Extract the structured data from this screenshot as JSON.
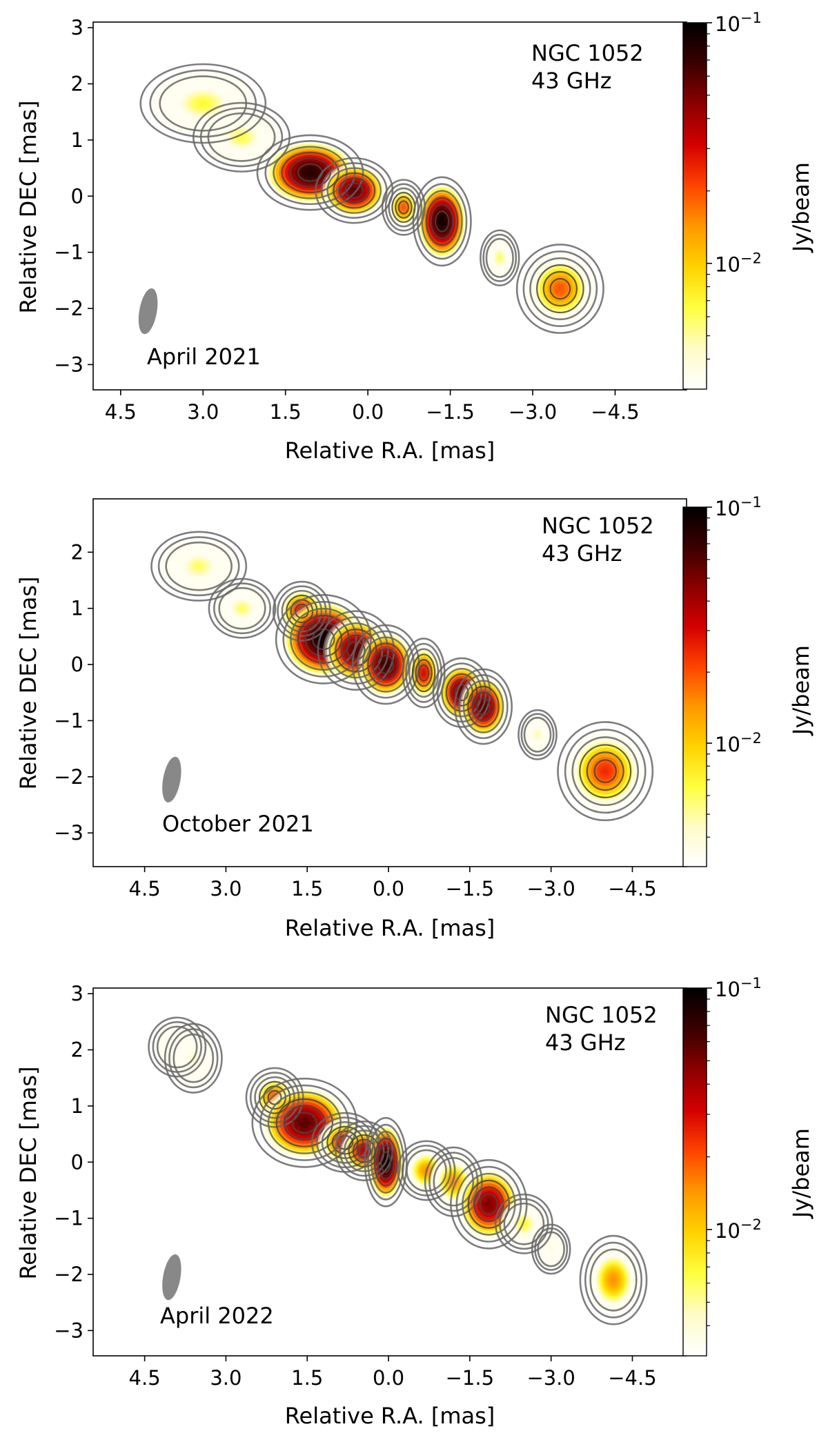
{
  "colors": {
    "colormap": [
      "#ffffff",
      "#fffbc8",
      "#ffff40",
      "#ffd300",
      "#ff9900",
      "#ff4400",
      "#d40000",
      "#8b0000",
      "#3a0000",
      "#000000"
    ],
    "contour": "#666666",
    "beam": "#888888",
    "frame": "#000000"
  },
  "chart_data": [
    {
      "type": "heatmap",
      "source_label": "NGC 1052",
      "frequency_label": "43 GHz",
      "epoch": "April 2021",
      "xlabel": "Relative R.A. [mas]",
      "ylabel": "Relative DEC [mas]",
      "colorbar_label": "Jy/beam",
      "colorbar_scale": "log",
      "colorbar_range": [
        0.003,
        0.1
      ],
      "colorbar_ticks": [
        {
          "value": 0.1,
          "label": "10",
          "exp": "−1"
        },
        {
          "value": 0.01,
          "label": "10",
          "exp": "−2"
        }
      ],
      "xlim": [
        5.0,
        -5.8
      ],
      "ylim": [
        -3.45,
        3.1
      ],
      "xticks": [
        4.5,
        3.0,
        1.5,
        0.0,
        -1.5,
        -3.0,
        -4.5
      ],
      "xtick_labels": [
        "4.5",
        "3.0",
        "1.5",
        "0.0",
        "−1.5",
        "−3.0",
        "−4.5"
      ],
      "yticks": [
        3,
        2,
        1,
        0,
        -1,
        -2,
        -3
      ],
      "ytick_labels": [
        "3",
        "2",
        "1",
        "0",
        "−1",
        "−2",
        "−3"
      ],
      "beam": {
        "ra": 4.0,
        "dec": -2.05,
        "major_mas": 0.75,
        "minor_mas": 0.32,
        "pa_deg": 10
      },
      "components": [
        {
          "ra": 3.0,
          "dec": 1.65,
          "peak_jy": 0.007,
          "ra_size": 0.65,
          "dec_size": 0.4
        },
        {
          "ra": 2.3,
          "dec": 1.05,
          "peak_jy": 0.0065,
          "ra_size": 0.5,
          "dec_size": 0.35
        },
        {
          "ra": 1.05,
          "dec": 0.42,
          "peak_jy": 0.08,
          "ra_size": 0.55,
          "dec_size": 0.38
        },
        {
          "ra": 0.25,
          "dec": 0.1,
          "peak_jy": 0.06,
          "ra_size": 0.4,
          "dec_size": 0.33
        },
        {
          "ra": -0.65,
          "dec": -0.2,
          "peak_jy": 0.02,
          "ra_size": 0.22,
          "dec_size": 0.28
        },
        {
          "ra": -1.35,
          "dec": -0.45,
          "peak_jy": 0.09,
          "ra_size": 0.3,
          "dec_size": 0.45
        },
        {
          "ra": -2.4,
          "dec": -1.1,
          "peak_jy": 0.006,
          "ra_size": 0.2,
          "dec_size": 0.28
        },
        {
          "ra": -3.5,
          "dec": -1.65,
          "peak_jy": 0.02,
          "ra_size": 0.45,
          "dec_size": 0.45
        }
      ]
    },
    {
      "type": "heatmap",
      "source_label": "NGC 1052",
      "frequency_label": "43 GHz",
      "epoch": "October 2021",
      "xlabel": "Relative R.A. [mas]",
      "ylabel": "Relative DEC [mas]",
      "colorbar_label": "Jy/beam",
      "colorbar_scale": "log",
      "colorbar_range": [
        0.003,
        0.1
      ],
      "colorbar_ticks": [
        {
          "value": 0.1,
          "label": "10",
          "exp": "−1"
        },
        {
          "value": 0.01,
          "label": "10",
          "exp": "−2"
        }
      ],
      "xlim": [
        5.45,
        -5.5
      ],
      "ylim": [
        -3.6,
        2.95
      ],
      "xticks": [
        4.5,
        3.0,
        1.5,
        0.0,
        -1.5,
        -3.0,
        -4.5
      ],
      "xtick_labels": [
        "4.5",
        "3.0",
        "1.5",
        "0.0",
        "−1.5",
        "−3.0",
        "−4.5"
      ],
      "yticks": [
        2,
        1,
        0,
        -1,
        -2,
        -3
      ],
      "ytick_labels": [
        "2",
        "1",
        "0",
        "−1",
        "−2",
        "−3"
      ],
      "beam": {
        "ra": 4.0,
        "dec": -2.05,
        "major_mas": 0.75,
        "minor_mas": 0.32,
        "pa_deg": 10
      },
      "components": [
        {
          "ra": 3.5,
          "dec": 1.75,
          "peak_jy": 0.006,
          "ra_size": 0.5,
          "dec_size": 0.35
        },
        {
          "ra": 2.7,
          "dec": 1.0,
          "peak_jy": 0.006,
          "ra_size": 0.35,
          "dec_size": 0.3
        },
        {
          "ra": 1.6,
          "dec": 0.95,
          "peak_jy": 0.03,
          "ra_size": 0.3,
          "dec_size": 0.3
        },
        {
          "ra": 1.2,
          "dec": 0.45,
          "peak_jy": 0.095,
          "ra_size": 0.5,
          "dec_size": 0.45
        },
        {
          "ra": 0.6,
          "dec": 0.25,
          "peak_jy": 0.06,
          "ra_size": 0.4,
          "dec_size": 0.4
        },
        {
          "ra": 0.05,
          "dec": 0.0,
          "peak_jy": 0.07,
          "ra_size": 0.35,
          "dec_size": 0.4
        },
        {
          "ra": -0.65,
          "dec": -0.15,
          "peak_jy": 0.03,
          "ra_size": 0.22,
          "dec_size": 0.35
        },
        {
          "ra": -1.35,
          "dec": -0.5,
          "peak_jy": 0.06,
          "ra_size": 0.3,
          "dec_size": 0.35
        },
        {
          "ra": -1.75,
          "dec": -0.75,
          "peak_jy": 0.06,
          "ra_size": 0.3,
          "dec_size": 0.38
        },
        {
          "ra": -2.75,
          "dec": -1.25,
          "peak_jy": 0.005,
          "ra_size": 0.2,
          "dec_size": 0.25
        },
        {
          "ra": -4.0,
          "dec": -1.9,
          "peak_jy": 0.025,
          "ra_size": 0.5,
          "dec_size": 0.5
        }
      ]
    },
    {
      "type": "heatmap",
      "source_label": "NGC 1052",
      "frequency_label": "43 GHz",
      "epoch": "April 2022",
      "xlabel": "Relative R.A. [mas]",
      "ylabel": "Relative DEC [mas]",
      "colorbar_label": "Jy/beam",
      "colorbar_scale": "log",
      "colorbar_range": [
        0.003,
        0.1
      ],
      "colorbar_ticks": [
        {
          "value": 0.1,
          "label": "10",
          "exp": "−1"
        },
        {
          "value": 0.01,
          "label": "10",
          "exp": "−2"
        }
      ],
      "xlim": [
        5.45,
        -5.5
      ],
      "ylim": [
        -3.45,
        3.1
      ],
      "xticks": [
        4.5,
        3.0,
        1.5,
        0.0,
        -1.5,
        -3.0,
        -4.5
      ],
      "xtick_labels": [
        "4.5",
        "3.0",
        "1.5",
        "0.0",
        "−1.5",
        "−3.0",
        "−4.5"
      ],
      "yticks": [
        3,
        2,
        1,
        0,
        -1,
        -2,
        -3
      ],
      "ytick_labels": [
        "3",
        "2",
        "1",
        "0",
        "−1",
        "−2",
        "−3"
      ],
      "beam": {
        "ra": 4.0,
        "dec": -2.05,
        "major_mas": 0.75,
        "minor_mas": 0.32,
        "pa_deg": 10
      },
      "components": [
        {
          "ra": 3.9,
          "dec": 2.05,
          "peak_jy": 0.004,
          "ra_size": 0.3,
          "dec_size": 0.3
        },
        {
          "ra": 3.6,
          "dec": 1.85,
          "peak_jy": 0.0045,
          "ra_size": 0.3,
          "dec_size": 0.35
        },
        {
          "ra": 2.1,
          "dec": 1.15,
          "peak_jy": 0.02,
          "ra_size": 0.3,
          "dec_size": 0.3
        },
        {
          "ra": 1.55,
          "dec": 0.7,
          "peak_jy": 0.06,
          "ra_size": 0.55,
          "dec_size": 0.45
        },
        {
          "ra": 0.8,
          "dec": 0.35,
          "peak_jy": 0.03,
          "ra_size": 0.35,
          "dec_size": 0.3
        },
        {
          "ra": 0.45,
          "dec": 0.2,
          "peak_jy": 0.035,
          "ra_size": 0.3,
          "dec_size": 0.3
        },
        {
          "ra": 0.05,
          "dec": 0.0,
          "peak_jy": 0.09,
          "ra_size": 0.22,
          "dec_size": 0.45
        },
        {
          "ra": -0.7,
          "dec": -0.15,
          "peak_jy": 0.015,
          "ra_size": 0.3,
          "dec_size": 0.3
        },
        {
          "ra": -1.2,
          "dec": -0.35,
          "peak_jy": 0.015,
          "ra_size": 0.3,
          "dec_size": 0.35
        },
        {
          "ra": -1.85,
          "dec": -0.75,
          "peak_jy": 0.05,
          "ra_size": 0.4,
          "dec_size": 0.45
        },
        {
          "ra": -2.5,
          "dec": -1.1,
          "peak_jy": 0.007,
          "ra_size": 0.3,
          "dec_size": 0.3
        },
        {
          "ra": -3.0,
          "dec": -1.55,
          "peak_jy": 0.004,
          "ra_size": 0.2,
          "dec_size": 0.25
        },
        {
          "ra": -4.15,
          "dec": -2.1,
          "peak_jy": 0.015,
          "ra_size": 0.35,
          "dec_size": 0.45
        }
      ]
    }
  ]
}
